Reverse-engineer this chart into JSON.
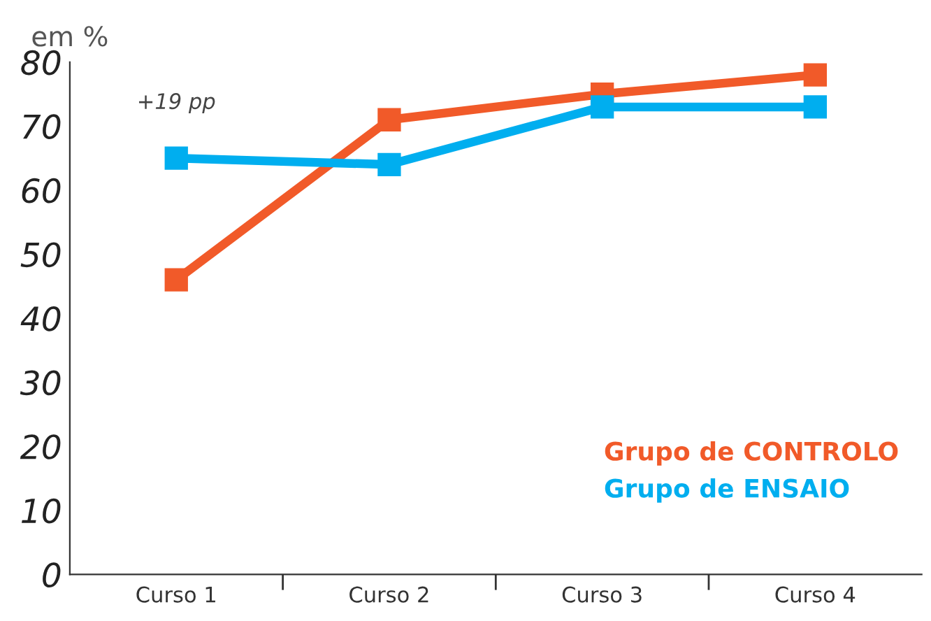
{
  "chart_data": {
    "type": "line",
    "ylabel": "em %",
    "categories": [
      "Curso 1",
      "Curso 2",
      "Curso 3",
      "Curso 4"
    ],
    "series": [
      {
        "name": "Grupo de CONTROLO",
        "color": "#f15a29",
        "values": [
          46,
          71,
          75,
          78
        ]
      },
      {
        "name": "Grupo de ENSAIO",
        "color": "#00aeef",
        "values": [
          65,
          64,
          73,
          73
        ]
      }
    ],
    "ylim": [
      0,
      80
    ],
    "yticks": [
      0,
      10,
      20,
      30,
      40,
      50,
      60,
      70,
      80
    ],
    "annotations": [
      "+19 pp"
    ],
    "marker": "square",
    "line_style": "solid",
    "grid": false,
    "legend": "right"
  }
}
